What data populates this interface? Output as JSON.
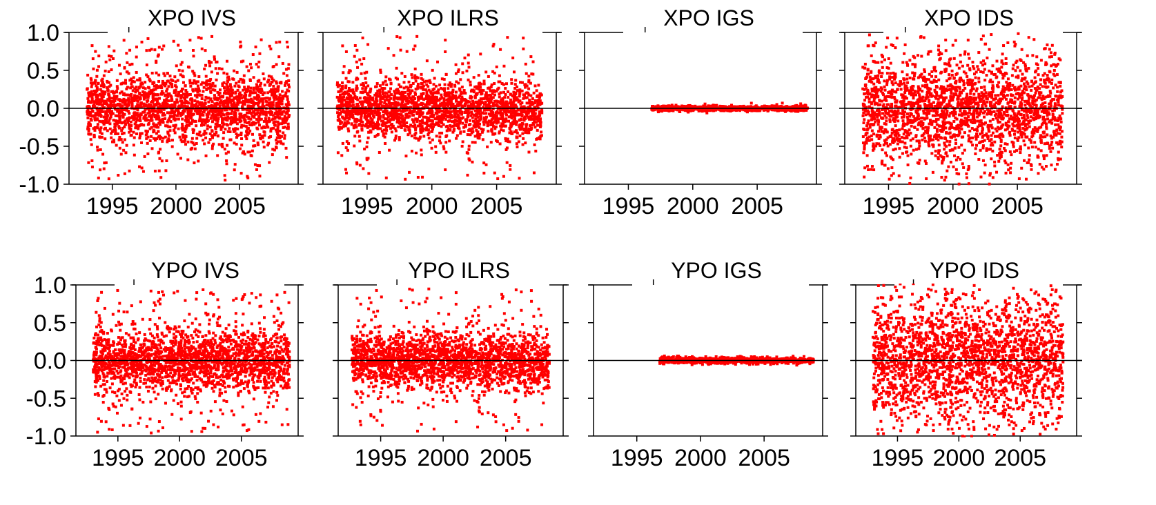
{
  "chart_data": {
    "type": "scatter",
    "marker_color": "#ff0000",
    "zero_line_color": "#000000",
    "x_ticks": [
      "1995",
      "2000",
      "2005"
    ],
    "x_tick_values": [
      1995,
      2000,
      2005
    ],
    "y_ticks": [
      "1.0",
      "0.5",
      "0.0",
      "-0.5",
      "-1.0"
    ],
    "y_tick_values": [
      1.0,
      0.5,
      0.0,
      -0.5,
      -1.0
    ],
    "ylim": [
      -1.0,
      1.0
    ],
    "panels": [
      {
        "title": "XPO IVS",
        "x_range": [
          1993.0,
          2008.9
        ],
        "spread": 0.22,
        "outliers": 0.12,
        "drift": 0.0,
        "xlim": [
          1991.6,
          2009.6
        ]
      },
      {
        "title": "XPO ILRS",
        "x_range": [
          1992.7,
          2008.5
        ],
        "spread": 0.2,
        "outliers": 0.06,
        "drift": -0.05,
        "xlim": [
          1991.6,
          2009.6
        ]
      },
      {
        "title": "XPO IGS",
        "x_range": [
          1996.8,
          2008.9
        ],
        "spread": 0.018,
        "outliers": 0.0,
        "drift": 0.0,
        "xlim": [
          1991.6,
          2009.6
        ]
      },
      {
        "title": "XPO IDS",
        "x_range": [
          1993.0,
          2008.5
        ],
        "spread": 0.35,
        "outliers": 0.05,
        "drift": -0.05,
        "xlim": [
          1991.6,
          2009.6
        ]
      },
      {
        "title": "YPO IVS",
        "x_range": [
          1993.0,
          2008.9
        ],
        "spread": 0.2,
        "outliers": 0.13,
        "drift": 0.0,
        "xlim": [
          1991.6,
          2009.6
        ]
      },
      {
        "title": "YPO ILRS",
        "x_range": [
          1992.7,
          2008.5
        ],
        "spread": 0.19,
        "outliers": 0.06,
        "drift": -0.03,
        "xlim": [
          1991.6,
          2009.6
        ]
      },
      {
        "title": "YPO IGS",
        "x_range": [
          1996.8,
          2008.9
        ],
        "spread": 0.02,
        "outliers": 0.0,
        "drift": 0.0,
        "xlim": [
          1991.6,
          2009.6
        ]
      },
      {
        "title": "YPO IDS",
        "x_range": [
          1993.0,
          2008.5
        ],
        "spread": 0.42,
        "outliers": 0.05,
        "drift": 0.0,
        "xlim": [
          1991.6,
          2009.6
        ]
      }
    ]
  }
}
